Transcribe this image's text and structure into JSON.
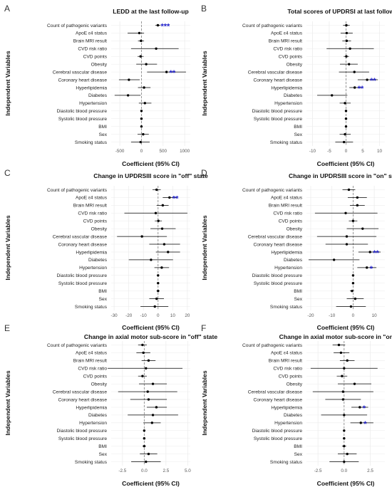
{
  "colors": {
    "point": "#000000",
    "ci_line": "#000000",
    "ref_line": "#808080",
    "grid": "#ebebeb",
    "significance": "#2222cc"
  },
  "variables": [
    "Count of pathogenic variants",
    "ApoE ε4 status",
    "Brain MRI result",
    "CVD risk ratio",
    "CVD points",
    "Obesity",
    "Cerebral vascular disease",
    "Coronary heart disease",
    "Hyperlipidemia",
    "Diabetes",
    "Hypertension",
    "Diastolic blood pressure",
    "Systolic blood pressure",
    "BMI",
    "Sex",
    "Smoking status"
  ],
  "chart_data": [
    {
      "panel": "A",
      "type": "scatter",
      "title": "LEDD at the last follow-up",
      "xlabel": "Coefficient (95% CI)",
      "ylabel": "Independent Variables",
      "xlim": [
        -700,
        1130
      ],
      "xticks": [
        -500,
        0,
        500,
        1000
      ],
      "xtick_labels": [
        "-500",
        "0",
        "500",
        "1000"
      ],
      "grid": true,
      "reference_line": 0,
      "points": [
        {
          "variable": "Count of pathogenic variants",
          "estimate": 380,
          "lower": 320,
          "upper": 440,
          "sig": "***"
        },
        {
          "variable": "ApoE ε4 status",
          "estimate": -50,
          "lower": -320,
          "upper": 60,
          "sig": ""
        },
        {
          "variable": "Brain MRI result",
          "estimate": -10,
          "lower": -80,
          "upper": 60,
          "sig": ""
        },
        {
          "variable": "CVD risk ratio",
          "estimate": 340,
          "lower": -240,
          "upper": 860,
          "sig": ""
        },
        {
          "variable": "CVD points",
          "estimate": -20,
          "lower": -90,
          "upper": 50,
          "sig": ""
        },
        {
          "variable": "Obesity",
          "estimate": 110,
          "lower": -120,
          "upper": 360,
          "sig": ""
        },
        {
          "variable": "Cerebral vascular disease",
          "estimate": 580,
          "lower": 130,
          "upper": 1030,
          "sig": "**"
        },
        {
          "variable": "Coronary heart disease",
          "estimate": -290,
          "lower": -520,
          "upper": -40,
          "sig": ""
        },
        {
          "variable": "Hyperlipidemia",
          "estimate": 60,
          "lower": -80,
          "upper": 210,
          "sig": ""
        },
        {
          "variable": "Diabetes",
          "estimate": -310,
          "lower": -620,
          "upper": -20,
          "sig": ""
        },
        {
          "variable": "Hypertension",
          "estimate": 80,
          "lower": -60,
          "upper": 230,
          "sig": ""
        },
        {
          "variable": "Diastolic blood pressure",
          "estimate": 0,
          "lower": -8,
          "upper": 8,
          "sig": ""
        },
        {
          "variable": "Systolic blood pressure",
          "estimate": 0,
          "lower": -6,
          "upper": 6,
          "sig": ""
        },
        {
          "variable": "BMI",
          "estimate": 0,
          "lower": -20,
          "upper": 20,
          "sig": ""
        },
        {
          "variable": "Sex",
          "estimate": 40,
          "lower": -90,
          "upper": 170,
          "sig": ""
        },
        {
          "variable": "Smoking status",
          "estimate": -20,
          "lower": -240,
          "upper": 190,
          "sig": ""
        }
      ]
    },
    {
      "panel": "B",
      "type": "scatter",
      "title": "Total scores of UPDRSI at last follow-up",
      "xlabel": "Coefficient (95% CI)",
      "ylabel": "Independent Variables",
      "xlim": [
        -11.8,
        11.6
      ],
      "xticks": [
        -10,
        -5,
        0,
        5,
        10
      ],
      "xtick_labels": [
        "-10",
        "-5",
        "0",
        "5",
        "10"
      ],
      "grid": true,
      "reference_line": 0,
      "points": [
        {
          "variable": "Count of pathogenic variants",
          "estimate": 0.1,
          "lower": -0.9,
          "upper": 1.1,
          "sig": ""
        },
        {
          "variable": "ApoE ε4 status",
          "estimate": 0.2,
          "lower": -1.6,
          "upper": 2.0,
          "sig": ""
        },
        {
          "variable": "Brain MRI result",
          "estimate": 0.2,
          "lower": -1.1,
          "upper": 1.5,
          "sig": ""
        },
        {
          "variable": "CVD risk ratio",
          "estimate": 1.2,
          "lower": -5.8,
          "upper": 8.3,
          "sig": ""
        },
        {
          "variable": "CVD points",
          "estimate": 0.1,
          "lower": -0.7,
          "upper": 0.9,
          "sig": ""
        },
        {
          "variable": "Obesity",
          "estimate": 0.9,
          "lower": -1.8,
          "upper": 3.5,
          "sig": ""
        },
        {
          "variable": "Cerebral vascular disease",
          "estimate": 2.5,
          "lower": -2.1,
          "upper": 6.9,
          "sig": ""
        },
        {
          "variable": "Coronary heart disease",
          "estimate": 6.3,
          "lower": 3.5,
          "upper": 9.5,
          "sig": "**"
        },
        {
          "variable": "Hyperlipidemia",
          "estimate": 2.6,
          "lower": 1.0,
          "upper": 4.5,
          "sig": "**"
        },
        {
          "variable": "Diabetes",
          "estimate": -4.2,
          "lower": -8.6,
          "upper": 0.4,
          "sig": ""
        },
        {
          "variable": "Hypertension",
          "estimate": -0.3,
          "lower": -1.9,
          "upper": 1.4,
          "sig": ""
        },
        {
          "variable": "Diastolic blood pressure",
          "estimate": 0.0,
          "lower": -0.1,
          "upper": 0.1,
          "sig": ""
        },
        {
          "variable": "Systolic blood pressure",
          "estimate": 0.0,
          "lower": -0.1,
          "upper": 0.1,
          "sig": ""
        },
        {
          "variable": "BMI",
          "estimate": 0.0,
          "lower": -0.3,
          "upper": 0.3,
          "sig": ""
        },
        {
          "variable": "Sex",
          "estimate": -0.3,
          "lower": -1.9,
          "upper": 1.4,
          "sig": ""
        },
        {
          "variable": "Smoking status",
          "estimate": -0.6,
          "lower": -3.2,
          "upper": 2.1,
          "sig": ""
        }
      ]
    },
    {
      "panel": "C",
      "type": "scatter",
      "title": "Change in UPDRSIII score in \"off\" state",
      "xlabel": "Coefficient (95% CI)",
      "ylabel": "Independent Variables",
      "xlim": [
        -32,
        22
      ],
      "xticks": [
        -30,
        -20,
        -10,
        0,
        10,
        20
      ],
      "xtick_labels": [
        "-30",
        "-20",
        "-10",
        "0",
        "10",
        "20"
      ],
      "grid": true,
      "reference_line": 0,
      "points": [
        {
          "variable": "Count of pathogenic variants",
          "estimate": -1.0,
          "lower": -3.8,
          "upper": 1.8,
          "sig": ""
        },
        {
          "variable": "ApoE ε4 status",
          "estimate": 7.8,
          "lower": 3.2,
          "upper": 12.6,
          "sig": "**"
        },
        {
          "variable": "Brain MRI result",
          "estimate": 3.2,
          "lower": -1.0,
          "upper": 7.2,
          "sig": ""
        },
        {
          "variable": "CVD risk ratio",
          "estimate": -1.6,
          "lower": -23.0,
          "upper": 20.0,
          "sig": ""
        },
        {
          "variable": "CVD points",
          "estimate": 0.2,
          "lower": -2.2,
          "upper": 2.6,
          "sig": ""
        },
        {
          "variable": "Obesity",
          "estimate": 2.8,
          "lower": -5.2,
          "upper": 12.0,
          "sig": ""
        },
        {
          "variable": "Cerebral vascular disease",
          "estimate": -11.0,
          "lower": -28.0,
          "upper": 6.0,
          "sig": ""
        },
        {
          "variable": "Coronary heart disease",
          "estimate": 4.2,
          "lower": -6.0,
          "upper": 15.0,
          "sig": ""
        },
        {
          "variable": "Hyperlipidemia",
          "estimate": 6.8,
          "lower": -1.5,
          "upper": 15.0,
          "sig": ""
        },
        {
          "variable": "Diabetes",
          "estimate": -4.8,
          "lower": -20.0,
          "upper": 10.2,
          "sig": ""
        },
        {
          "variable": "Hypertension",
          "estimate": 2.5,
          "lower": -2.5,
          "upper": 7.5,
          "sig": ""
        },
        {
          "variable": "Diastolic blood pressure",
          "estimate": 0.0,
          "lower": -0.3,
          "upper": 0.3,
          "sig": ""
        },
        {
          "variable": "Systolic blood pressure",
          "estimate": 0.0,
          "lower": -0.2,
          "upper": 0.2,
          "sig": ""
        },
        {
          "variable": "BMI",
          "estimate": 0.0,
          "lower": -1.0,
          "upper": 1.0,
          "sig": ""
        },
        {
          "variable": "Sex",
          "estimate": -1.0,
          "lower": -6.0,
          "upper": 4.0,
          "sig": ""
        },
        {
          "variable": "Smoking status",
          "estimate": -2.2,
          "lower": -12.0,
          "upper": 7.0,
          "sig": ""
        }
      ]
    },
    {
      "panel": "D",
      "type": "scatter",
      "title": "Change in UPDRSIII score in \"on\" state",
      "xlabel": "Coefficient (95% CI)",
      "ylabel": "Independent Variables",
      "xlim": [
        -22,
        15
      ],
      "xticks": [
        -20,
        -10,
        0,
        10
      ],
      "xtick_labels": [
        "-20",
        "-10",
        "0",
        "10"
      ],
      "grid": true,
      "reference_line": 0,
      "points": [
        {
          "variable": "Count of pathogenic variants",
          "estimate": -2.0,
          "lower": -5.0,
          "upper": 1.0,
          "sig": ""
        },
        {
          "variable": "ApoE ε4 status",
          "estimate": 2.0,
          "lower": -2.5,
          "upper": 6.5,
          "sig": ""
        },
        {
          "variable": "Brain MRI result",
          "estimate": 2.0,
          "lower": -1.5,
          "upper": 5.5,
          "sig": ""
        },
        {
          "variable": "CVD risk ratio",
          "estimate": -3.5,
          "lower": -18.0,
          "upper": 11.5,
          "sig": ""
        },
        {
          "variable": "CVD points",
          "estimate": 0.0,
          "lower": -2.0,
          "upper": 2.0,
          "sig": ""
        },
        {
          "variable": "Obesity",
          "estimate": 4.5,
          "lower": -3.0,
          "upper": 12.0,
          "sig": ""
        },
        {
          "variable": "Cerebral vascular disease",
          "estimate": -3.0,
          "lower": -17.0,
          "upper": 11.0,
          "sig": ""
        },
        {
          "variable": "Coronary heart disease",
          "estimate": -3.0,
          "lower": -13.0,
          "upper": 7.0,
          "sig": ""
        },
        {
          "variable": "Hyperlipidemia",
          "estimate": 8.0,
          "lower": 2.5,
          "upper": 13.0,
          "sig": "**"
        },
        {
          "variable": "Diabetes",
          "estimate": -9.0,
          "lower": -21.0,
          "upper": 3.0,
          "sig": ""
        },
        {
          "variable": "Hypertension",
          "estimate": 6.5,
          "lower": 2.0,
          "upper": 11.0,
          "sig": "*"
        },
        {
          "variable": "Diastolic blood pressure",
          "estimate": 0.0,
          "lower": -0.2,
          "upper": 0.2,
          "sig": ""
        },
        {
          "variable": "Systolic blood pressure",
          "estimate": 0.0,
          "lower": -0.2,
          "upper": 0.2,
          "sig": ""
        },
        {
          "variable": "BMI",
          "estimate": -0.5,
          "lower": -1.5,
          "upper": 0.5,
          "sig": ""
        },
        {
          "variable": "Sex",
          "estimate": 1.0,
          "lower": -3.0,
          "upper": 5.0,
          "sig": ""
        },
        {
          "variable": "Smoking status",
          "estimate": -1.0,
          "lower": -8.0,
          "upper": 6.0,
          "sig": ""
        }
      ]
    },
    {
      "panel": "E",
      "type": "scatter",
      "title": "Change in axial motor sub-score in \"off\" state",
      "xlabel": "Coefficient (95% CI)",
      "ylabel": "Independent Variables",
      "xlim": [
        -3.8,
        5.3
      ],
      "xticks": [
        -2.5,
        0,
        2.5,
        5
      ],
      "xtick_labels": [
        "-2.5",
        "0.0",
        "2.5",
        "5.0"
      ],
      "grid": true,
      "reference_line": 0,
      "points": [
        {
          "variable": "Count of pathogenic variants",
          "estimate": -0.2,
          "lower": -0.7,
          "upper": 0.3,
          "sig": ""
        },
        {
          "variable": "ApoE ε4 status",
          "estimate": -0.1,
          "lower": -0.9,
          "upper": 0.7,
          "sig": ""
        },
        {
          "variable": "Brain MRI result",
          "estimate": 0.5,
          "lower": -0.3,
          "upper": 1.3,
          "sig": ""
        },
        {
          "variable": "CVD risk ratio",
          "estimate": 0.2,
          "lower": -4.2,
          "upper": 4.4,
          "sig": ""
        },
        {
          "variable": "CVD points",
          "estimate": -0.2,
          "lower": -0.7,
          "upper": 0.3,
          "sig": ""
        },
        {
          "variable": "Obesity",
          "estimate": 1.0,
          "lower": -0.6,
          "upper": 2.6,
          "sig": ""
        },
        {
          "variable": "Cerebral vascular disease",
          "estimate": 0.4,
          "lower": -3.0,
          "upper": 3.8,
          "sig": ""
        },
        {
          "variable": "Coronary heart disease",
          "estimate": 0.5,
          "lower": -1.6,
          "upper": 2.6,
          "sig": ""
        },
        {
          "variable": "Hyperlipidemia",
          "estimate": 1.4,
          "lower": 0.3,
          "upper": 2.6,
          "sig": ""
        },
        {
          "variable": "Diabetes",
          "estimate": 1.0,
          "lower": -1.9,
          "upper": 3.9,
          "sig": ""
        },
        {
          "variable": "Hypertension",
          "estimate": 0.9,
          "lower": -0.1,
          "upper": 1.9,
          "sig": ""
        },
        {
          "variable": "Diastolic blood pressure",
          "estimate": 0.0,
          "lower": -0.05,
          "upper": 0.05,
          "sig": ""
        },
        {
          "variable": "Systolic blood pressure",
          "estimate": 0.0,
          "lower": -0.05,
          "upper": 0.05,
          "sig": ""
        },
        {
          "variable": "BMI",
          "estimate": 0.0,
          "lower": -0.2,
          "upper": 0.2,
          "sig": ""
        },
        {
          "variable": "Sex",
          "estimate": 0.5,
          "lower": -0.5,
          "upper": 1.5,
          "sig": ""
        },
        {
          "variable": "Smoking status",
          "estimate": 0.2,
          "lower": -1.5,
          "upper": 1.9,
          "sig": ""
        }
      ]
    },
    {
      "panel": "F",
      "type": "scatter",
      "title": "Change in axial motor sub-score in \"on\" state",
      "xlabel": "Coefficient (95% CI)",
      "ylabel": "Independent Variables",
      "xlim": [
        -3.6,
        3.9
      ],
      "xticks": [
        -2.5,
        0,
        2.5
      ],
      "xtick_labels": [
        "-2.5",
        "0.0",
        "2.5"
      ],
      "grid": true,
      "reference_line": 0,
      "points": [
        {
          "variable": "Count of pathogenic variants",
          "estimate": -0.5,
          "lower": -1.1,
          "upper": 0.1,
          "sig": ""
        },
        {
          "variable": "ApoE ε4 status",
          "estimate": -0.3,
          "lower": -1.0,
          "upper": 0.5,
          "sig": ""
        },
        {
          "variable": "Brain MRI result",
          "estimate": 0.3,
          "lower": -0.4,
          "upper": 1.0,
          "sig": ""
        },
        {
          "variable": "CVD risk ratio",
          "estimate": 0.0,
          "lower": -3.2,
          "upper": 3.2,
          "sig": ""
        },
        {
          "variable": "CVD points",
          "estimate": -0.2,
          "lower": -0.7,
          "upper": 0.3,
          "sig": ""
        },
        {
          "variable": "Obesity",
          "estimate": 1.0,
          "lower": -0.6,
          "upper": 2.6,
          "sig": ""
        },
        {
          "variable": "Cerebral vascular disease",
          "estimate": -0.1,
          "lower": -3.0,
          "upper": 2.8,
          "sig": ""
        },
        {
          "variable": "Coronary heart disease",
          "estimate": -0.1,
          "lower": -1.8,
          "upper": 1.6,
          "sig": ""
        },
        {
          "variable": "Hyperlipidemia",
          "estimate": 1.5,
          "lower": 0.7,
          "upper": 2.3,
          "sig": "*"
        },
        {
          "variable": "Diabetes",
          "estimate": 0.0,
          "lower": -2.2,
          "upper": 2.2,
          "sig": ""
        },
        {
          "variable": "Hypertension",
          "estimate": 1.6,
          "lower": 0.6,
          "upper": 2.8,
          "sig": "*"
        },
        {
          "variable": "Diastolic blood pressure",
          "estimate": 0.0,
          "lower": -0.05,
          "upper": 0.05,
          "sig": ""
        },
        {
          "variable": "Systolic blood pressure",
          "estimate": 0.0,
          "lower": -0.05,
          "upper": 0.05,
          "sig": ""
        },
        {
          "variable": "BMI",
          "estimate": 0.0,
          "lower": -0.2,
          "upper": 0.2,
          "sig": ""
        },
        {
          "variable": "Sex",
          "estimate": 0.3,
          "lower": -0.6,
          "upper": 1.2,
          "sig": ""
        },
        {
          "variable": "Smoking status",
          "estimate": 0.0,
          "lower": -1.4,
          "upper": 1.4,
          "sig": ""
        }
      ]
    }
  ]
}
